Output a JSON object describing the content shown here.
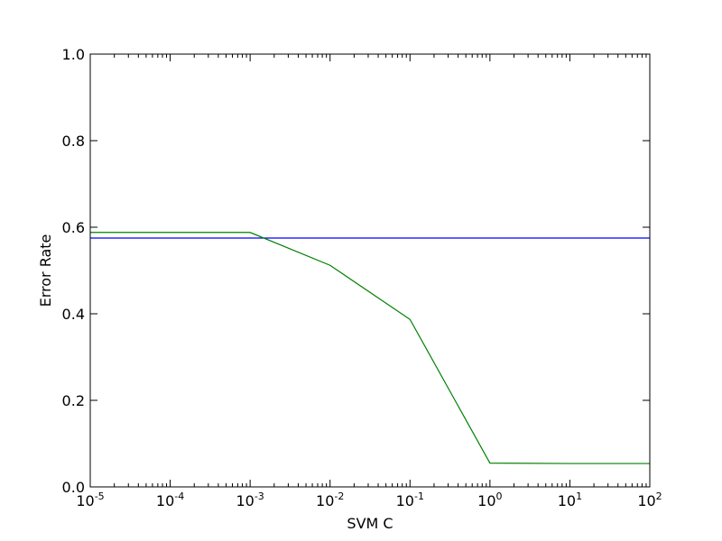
{
  "chart_data": {
    "type": "line",
    "x_scale": "log",
    "xlabel": "SVM C",
    "ylabel": "Error Rate",
    "xlim": [
      1e-05,
      100
    ],
    "ylim": [
      0,
      1
    ],
    "x_ticks": [
      {
        "base": "10",
        "exp": "-5",
        "value": 1e-05
      },
      {
        "base": "10",
        "exp": "-4",
        "value": 0.0001
      },
      {
        "base": "10",
        "exp": "-3",
        "value": 0.001
      },
      {
        "base": "10",
        "exp": "-2",
        "value": 0.01
      },
      {
        "base": "10",
        "exp": "-1",
        "value": 0.1
      },
      {
        "base": "10",
        "exp": "0",
        "value": 1
      },
      {
        "base": "10",
        "exp": "1",
        "value": 10
      },
      {
        "base": "10",
        "exp": "2",
        "value": 100
      }
    ],
    "y_ticks": [
      "0.0",
      "0.2",
      "0.4",
      "0.6",
      "0.8",
      "1.0"
    ],
    "grid": false,
    "series": [
      {
        "color": "#0000ff",
        "x": [
          1e-05,
          100
        ],
        "y": [
          0.575,
          0.575
        ]
      },
      {
        "color": "#008000",
        "x": [
          1e-05,
          0.001,
          0.01,
          0.1,
          1,
          10,
          100
        ],
        "y": [
          0.588,
          0.588,
          0.512,
          0.387,
          0.055,
          0.054,
          0.054
        ]
      }
    ]
  }
}
